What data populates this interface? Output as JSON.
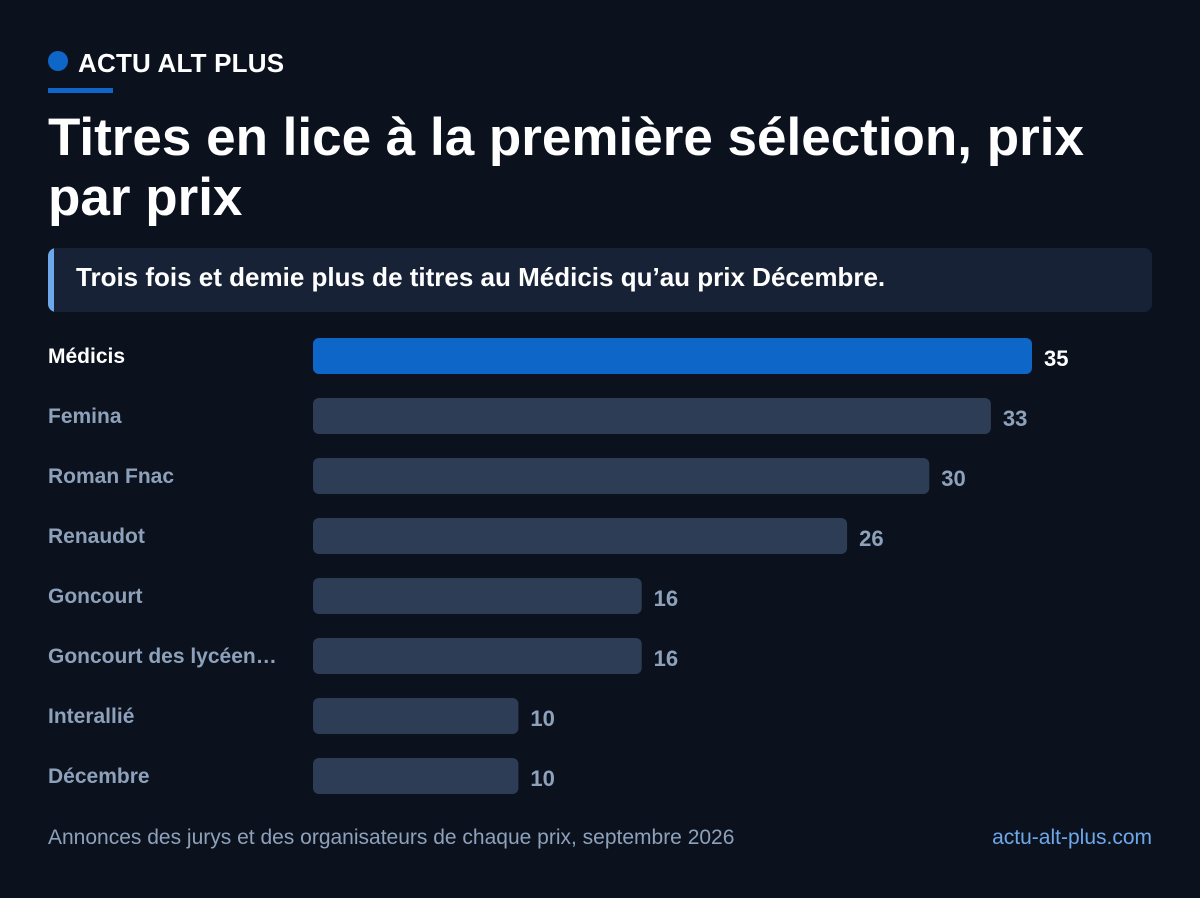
{
  "brand": {
    "name": "ACTU ALT PLUS"
  },
  "header": {
    "title": "Titres en lice à la première sélection, prix par prix"
  },
  "callout": {
    "text": "Trois fois et demie plus de titres au Médicis qu’au prix Décembre."
  },
  "chart_data": {
    "type": "bar",
    "orientation": "horizontal",
    "categories": [
      "Médicis",
      "Femina",
      "Roman Fnac",
      "Renaudot",
      "Goncourt",
      "Goncourt des lycéen…",
      "Interallié",
      "Décembre"
    ],
    "values": [
      35,
      33,
      30,
      26,
      16,
      16,
      10,
      10
    ],
    "highlight": "Médicis",
    "xlim": [
      0,
      35
    ],
    "grid": false,
    "colors": {
      "highlight_bar": "#0e66c8",
      "bar": "#2d3d56",
      "highlight_text": "#ffffff",
      "text": "#8ea1bb"
    }
  },
  "footer": {
    "source": "Annonces des jurys et des organisateurs de chaque prix, septembre 2026",
    "site": "actu-alt-plus.com"
  }
}
